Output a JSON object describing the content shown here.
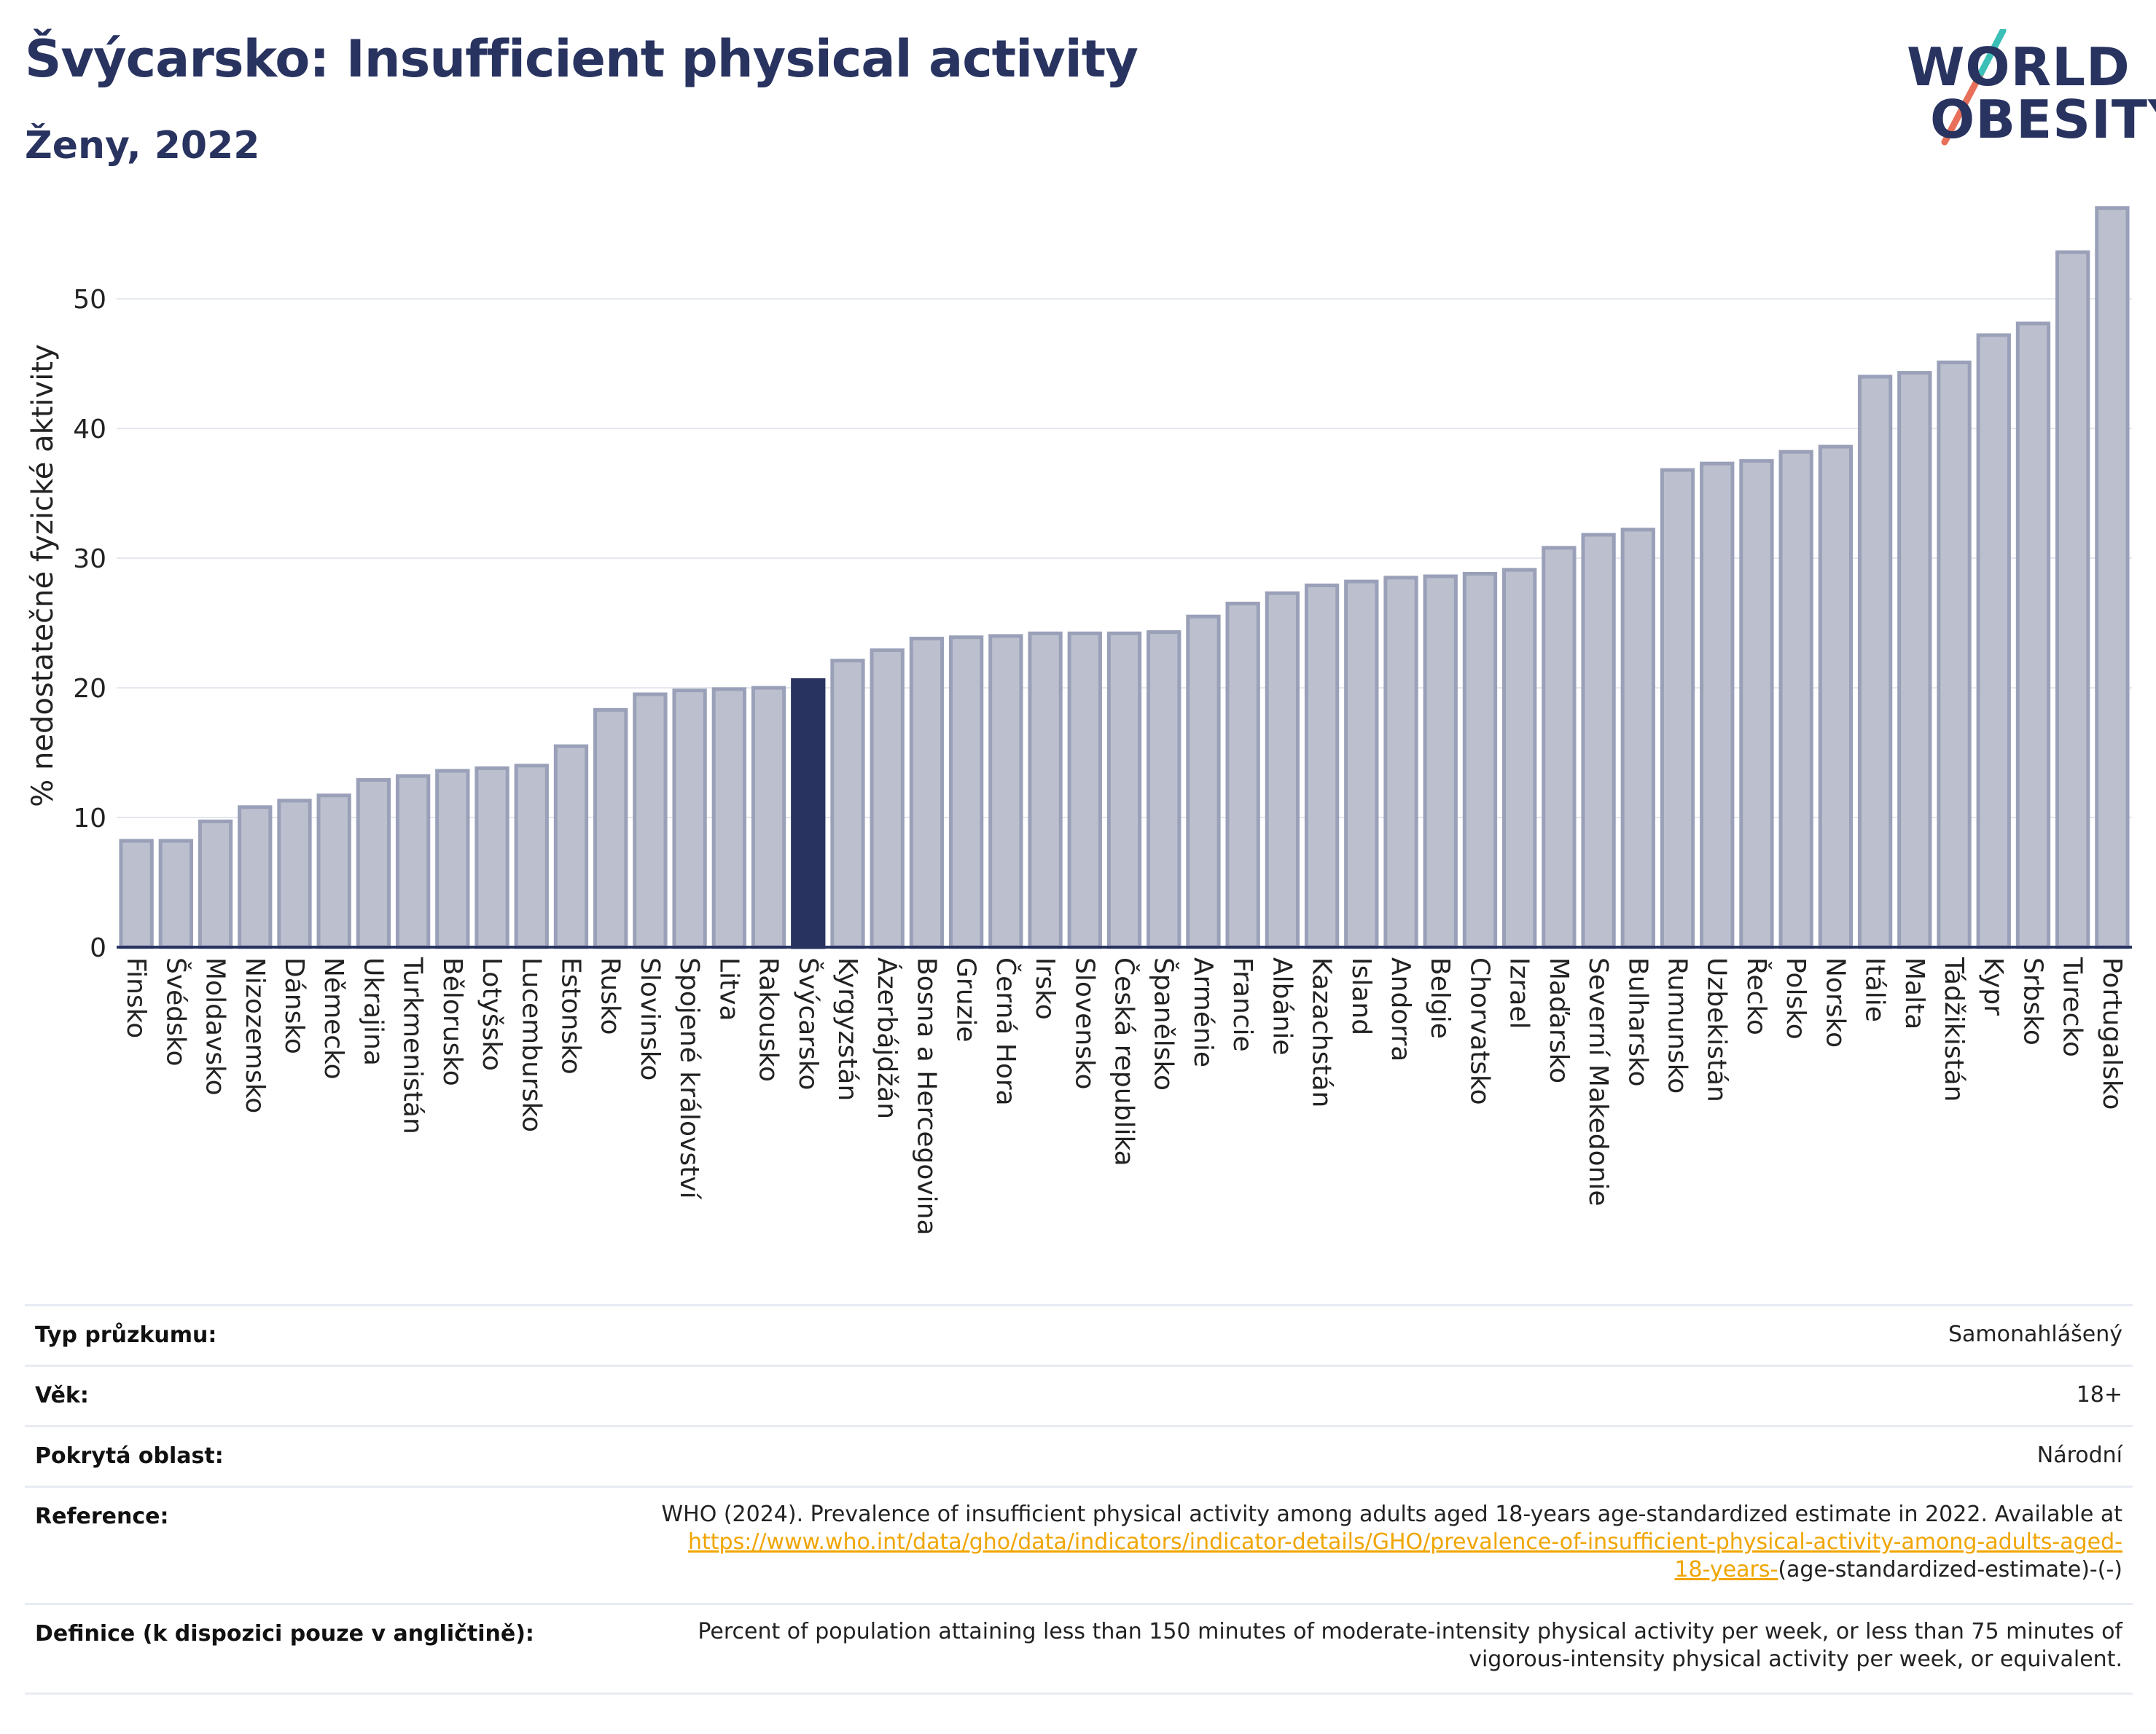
{
  "header": {
    "title": "Švýcarsko: Insufficient physical activity",
    "subtitle": "Ženy, 2022"
  },
  "logo": {
    "line1": "WORLD",
    "line2": "OBESITY",
    "text": "WORLD OBESITY"
  },
  "colors": {
    "bar": "#bcc0ce",
    "bar_stroke": "#9aa0b8",
    "highlight": "#283360",
    "grid": "#e3e6ee",
    "axis": "#283360",
    "link": "#f0a500"
  },
  "chart_data": {
    "type": "bar",
    "title": "",
    "xlabel": "",
    "ylabel": "% nedostatečné fyzické aktivity",
    "ylim": [
      0,
      59
    ],
    "yticks": [
      0,
      10,
      20,
      30,
      40,
      50
    ],
    "grid": true,
    "highlight_category": "Švýcarsko",
    "categories": [
      "Finsko",
      "Švédsko",
      "Moldavsko",
      "Nizozemsko",
      "Dánsko",
      "Německo",
      "Ukrajina",
      "Turkmenistán",
      "Bělorusko",
      "Lotyšsko",
      "Lucembursko",
      "Estonsko",
      "Rusko",
      "Slovinsko",
      "Spojené království",
      "Litva",
      "Rakousko",
      "Švýcarsko",
      "Kyrgyzstán",
      "Ázerbájdžán",
      "Bosna a Hercegovina",
      "Gruzie",
      "Černá Hora",
      "Irsko",
      "Slovensko",
      "Česká republika",
      "Španělsko",
      "Arménie",
      "Francie",
      "Albánie",
      "Kazachstán",
      "Island",
      "Andorra",
      "Belgie",
      "Chorvatsko",
      "Izrael",
      "Maďarsko",
      "Severní Makedonie",
      "Bulharsko",
      "Rumunsko",
      "Uzbekistán",
      "Řecko",
      "Polsko",
      "Norsko",
      "Itálie",
      "Malta",
      "Tádžikistán",
      "Kypr",
      "Srbsko",
      "Turecko",
      "Portugalsko"
    ],
    "values": [
      8.2,
      8.2,
      9.7,
      10.8,
      11.3,
      11.7,
      12.9,
      13.2,
      13.6,
      13.8,
      14.0,
      15.5,
      18.3,
      19.5,
      19.8,
      19.9,
      20.0,
      20.6,
      22.1,
      22.9,
      23.8,
      23.9,
      24.0,
      24.2,
      24.2,
      24.2,
      24.3,
      25.5,
      26.5,
      27.3,
      27.9,
      28.2,
      28.5,
      28.6,
      28.8,
      29.1,
      30.8,
      31.8,
      32.2,
      36.8,
      37.3,
      37.5,
      38.2,
      38.6,
      44.0,
      44.3,
      45.1,
      47.2,
      48.1,
      53.6,
      57.0
    ]
  },
  "info_table": {
    "survey_type_label": "Typ průzkumu:",
    "survey_type_value": "Samonahlášený",
    "age_label": "Věk:",
    "age_value": "18+",
    "coverage_label": "Pokrytá oblast:",
    "coverage_value": "Národní",
    "reference_label": "Reference:",
    "reference_text": "WHO (2024). Prevalence of insufficient physical activity among adults aged 18-years age-standardized estimate in 2022. Available at",
    "reference_link_line1": "https://www.who.int/data/gho/data/indicators/indicator-details/GHO/prevalence-of-insufficient-physical-activity-among-adults-aged-",
    "reference_link_line2": "18-years-",
    "reference_suffix": "(age-standardized-estimate)-(-)",
    "definition_label": "Definice (k dispozici pouze v angličtině):",
    "definition_line1": "Percent of population attaining less than 150 minutes of moderate-intensity physical activity per week, or less than 75 minutes of",
    "definition_line2": "vigorous-intensity physical activity per week, or equivalent."
  }
}
